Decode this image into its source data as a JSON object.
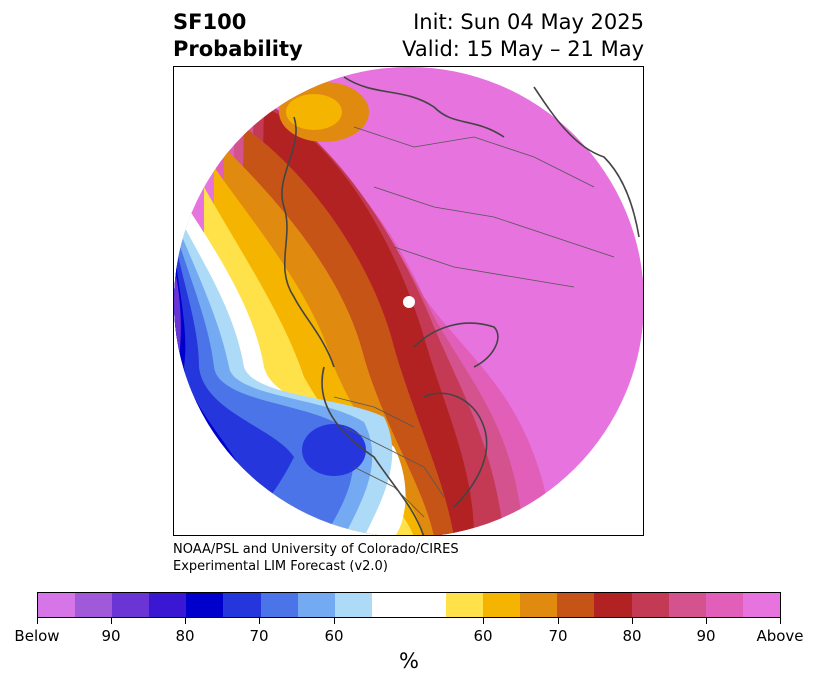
{
  "title": {
    "left_line1": "SF100",
    "left_line2": "Probability",
    "right_line1": "Init: Sun 04 May 2025",
    "right_line2": "Valid: 15 May – 21 May"
  },
  "credits": {
    "line1": "NOAA/PSL and University of Colorado/CIRES",
    "line2": "Experimental LIM Forecast (v2.0)"
  },
  "colorbar": {
    "unit": "%",
    "tick_labels": [
      "Below",
      "90",
      "80",
      "70",
      "60",
      "60",
      "70",
      "80",
      "90",
      "Above"
    ],
    "colors": [
      "#d675e8",
      "#a05ad9",
      "#6a35d4",
      "#3a17d3",
      "#0000cc",
      "#2536dc",
      "#4a74e8",
      "#74aaf2",
      "#addaf7",
      "#ffffff",
      "#ffe14a",
      "#f4b400",
      "#e08a10",
      "#c65416",
      "#b32223",
      "#c43a55",
      "#d4528d",
      "#e25fb9",
      "#e673de"
    ]
  },
  "map": {
    "projection": "north polar stereographic",
    "features": [
      "pole-marker",
      "coastlines",
      "country-borders"
    ]
  }
}
